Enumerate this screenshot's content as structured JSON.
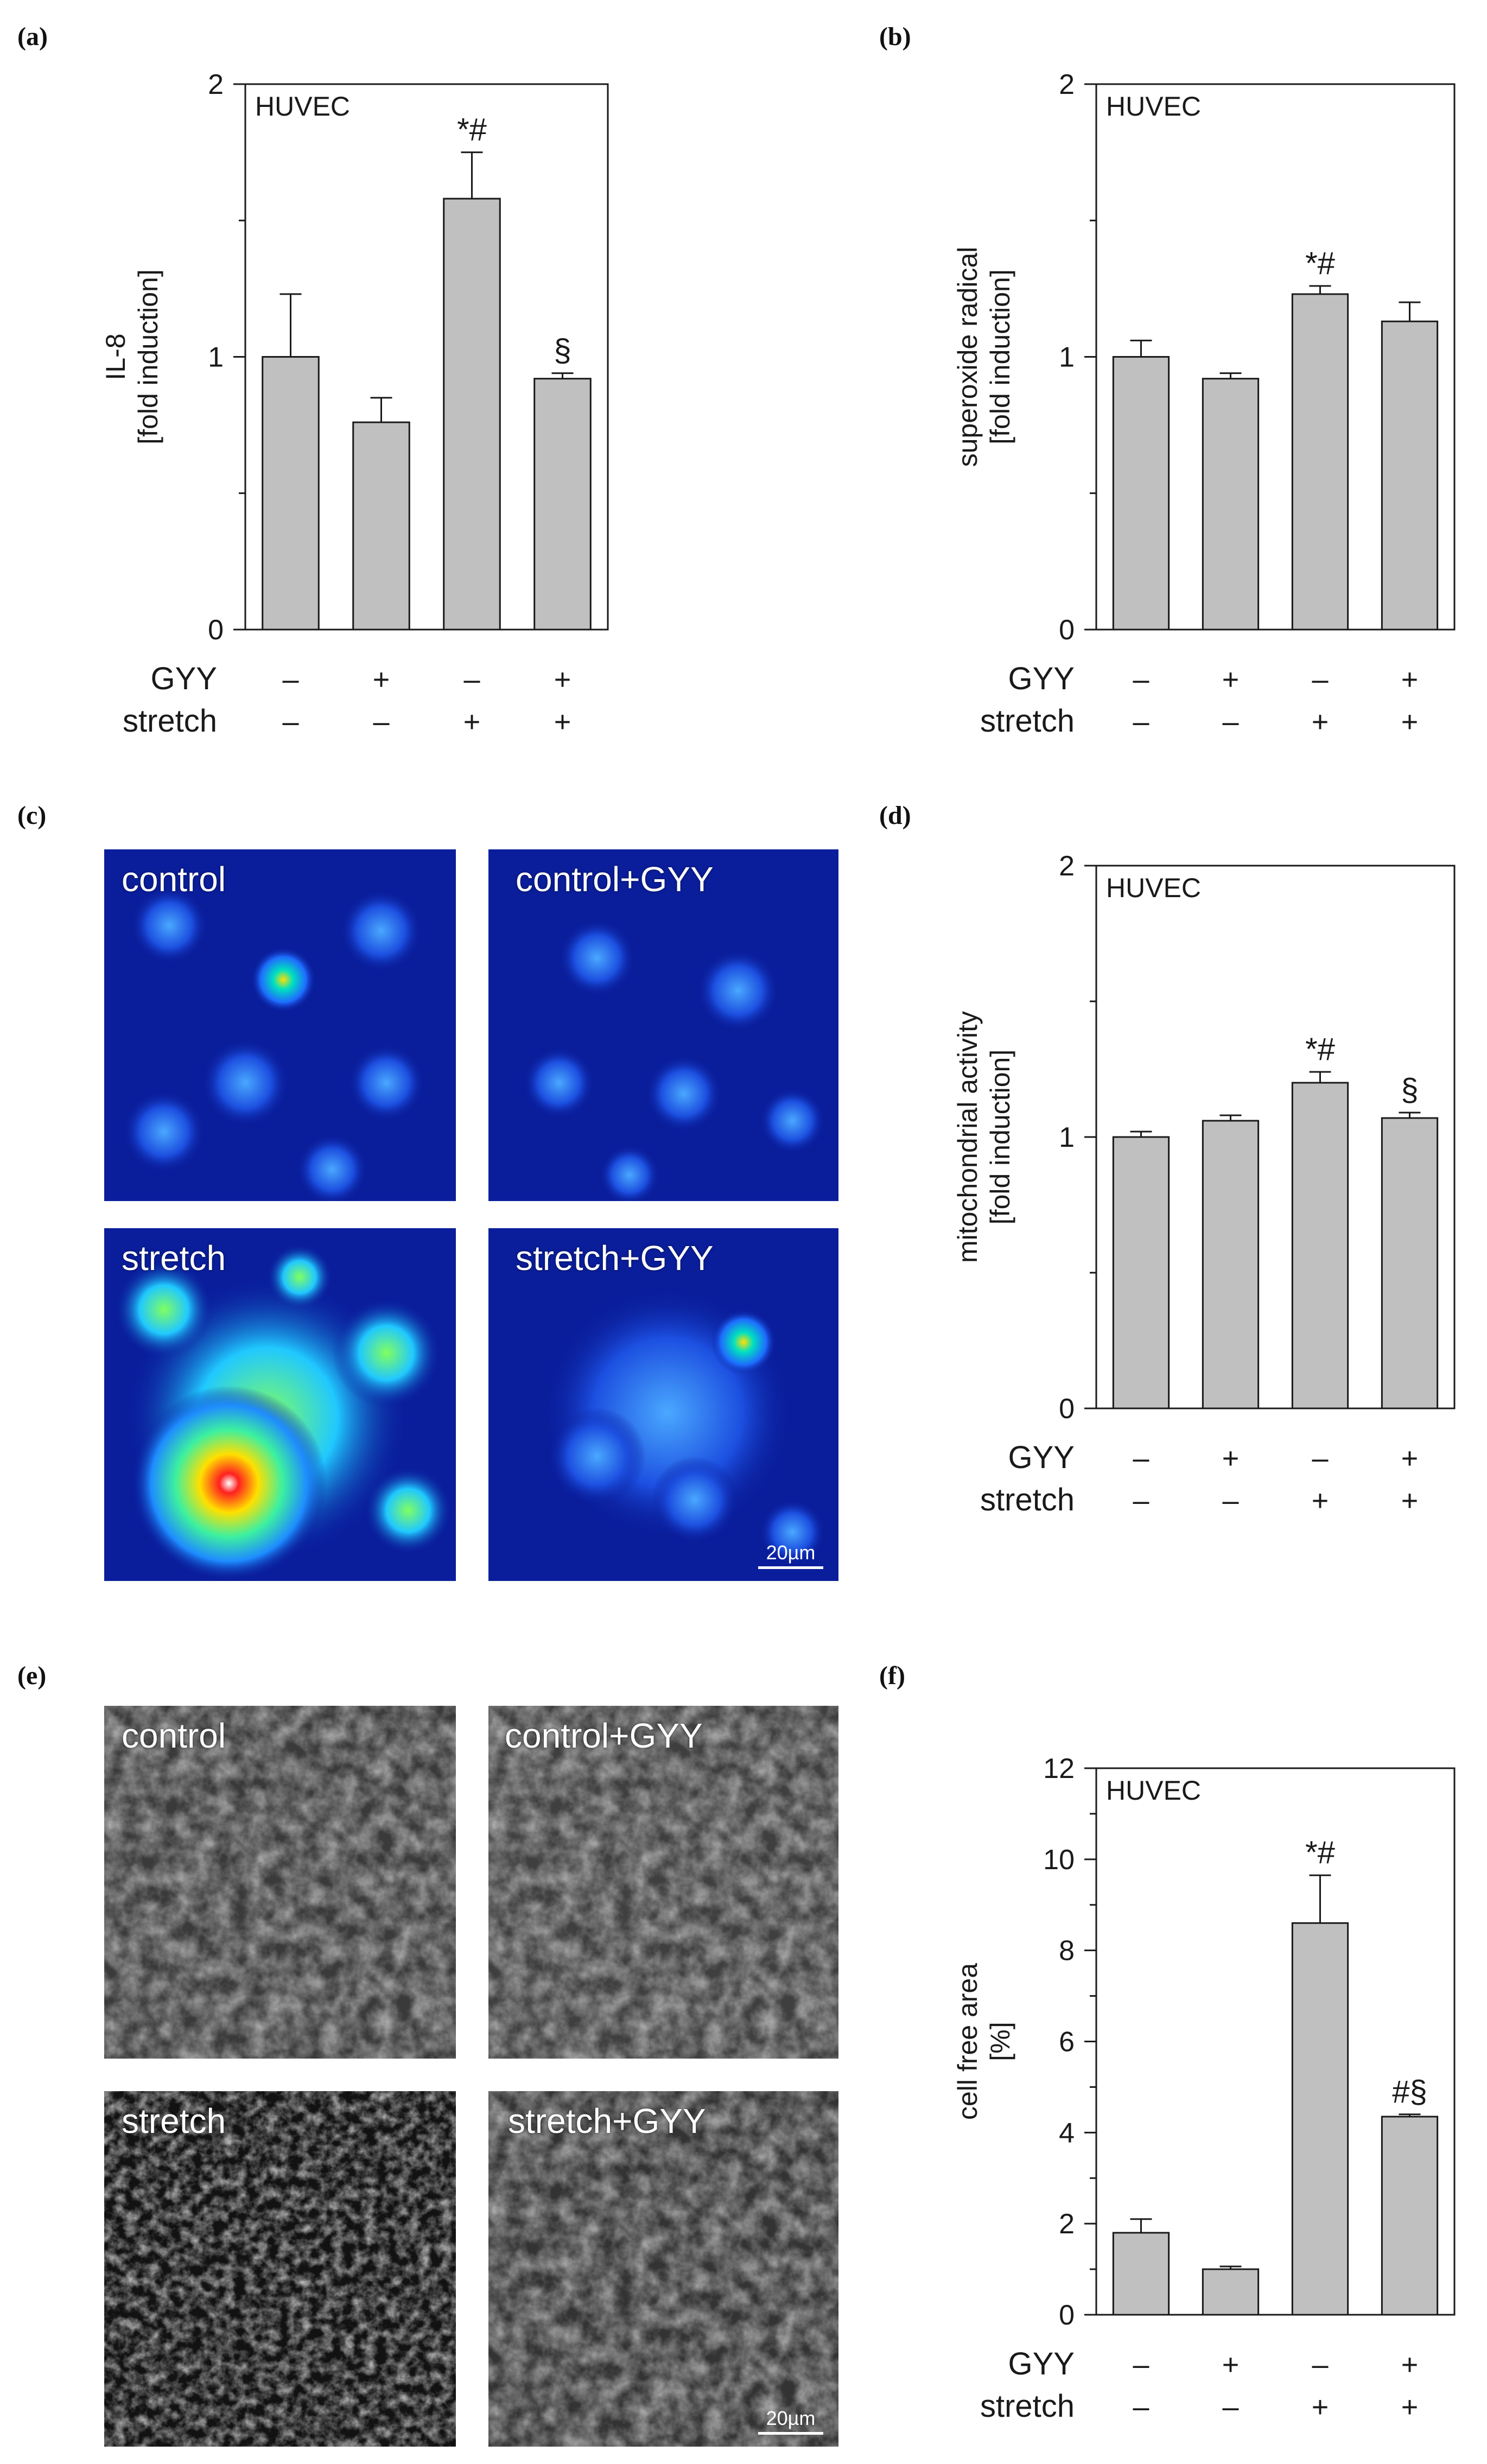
{
  "panels": {
    "a": "(a)",
    "b": "(b)",
    "c": "(c)",
    "d": "(d)",
    "e": "(e)",
    "f": "(f)"
  },
  "rows": {
    "gyy": {
      "label": "GYY",
      "signs": [
        "–",
        "+",
        "–",
        "+"
      ]
    },
    "stretch": {
      "label": "stretch",
      "signs": [
        "–",
        "–",
        "+",
        "+"
      ]
    }
  },
  "images_c": {
    "control": "control",
    "control_gyy": "control+GYY",
    "stretch": "stretch",
    "stretch_gyy": "stretch+GYY",
    "scale": "20µm"
  },
  "images_e": {
    "control": "control",
    "control_gyy": "control+GYY",
    "stretch": "stretch",
    "stretch_gyy": "stretch+GYY",
    "scale": "20µm"
  },
  "colors": {
    "bar_fill": "#c0c0c0",
    "bar_stroke": "#1a1a1a",
    "heatmap_base": "#0a1e9c"
  },
  "chart_data": [
    {
      "id": "a",
      "type": "bar",
      "inset_label": "HUVEC",
      "ylabel": [
        "IL-8",
        "[fold induction]"
      ],
      "ylim": [
        0,
        2
      ],
      "yticks": [
        0,
        1,
        2
      ],
      "minor_step": 0.5,
      "values": [
        1.0,
        0.76,
        1.58,
        0.92
      ],
      "errors": [
        0.23,
        0.09,
        0.17,
        0.02
      ],
      "annotations": [
        "",
        "",
        "*#",
        "§"
      ]
    },
    {
      "id": "b",
      "type": "bar",
      "inset_label": "HUVEC",
      "ylabel": [
        "superoxide radical",
        "[fold induction]"
      ],
      "ylim": [
        0,
        2
      ],
      "yticks": [
        0,
        1,
        2
      ],
      "minor_step": 0.5,
      "values": [
        1.0,
        0.92,
        1.23,
        1.13
      ],
      "errors": [
        0.06,
        0.02,
        0.03,
        0.07
      ],
      "annotations": [
        "",
        "",
        "*#",
        ""
      ]
    },
    {
      "id": "d",
      "type": "bar",
      "inset_label": "HUVEC",
      "ylabel": [
        "mitochondrial activity",
        "[fold induction]"
      ],
      "ylim": [
        0,
        2
      ],
      "yticks": [
        0,
        1,
        2
      ],
      "minor_step": 0.5,
      "values": [
        1.0,
        1.06,
        1.2,
        1.07
      ],
      "errors": [
        0.02,
        0.02,
        0.04,
        0.02
      ],
      "annotations": [
        "",
        "",
        "*#",
        "§"
      ]
    },
    {
      "id": "f",
      "type": "bar",
      "inset_label": "HUVEC",
      "ylabel": [
        "cell free area",
        "[%]"
      ],
      "ylim": [
        0,
        12
      ],
      "yticks": [
        0,
        2,
        4,
        6,
        8,
        10,
        12
      ],
      "minor_step": 1,
      "values": [
        1.8,
        1.0,
        8.6,
        4.35
      ],
      "errors": [
        0.3,
        0.06,
        1.05,
        0.05
      ],
      "annotations": [
        "",
        "",
        "*#",
        "#§"
      ]
    }
  ]
}
